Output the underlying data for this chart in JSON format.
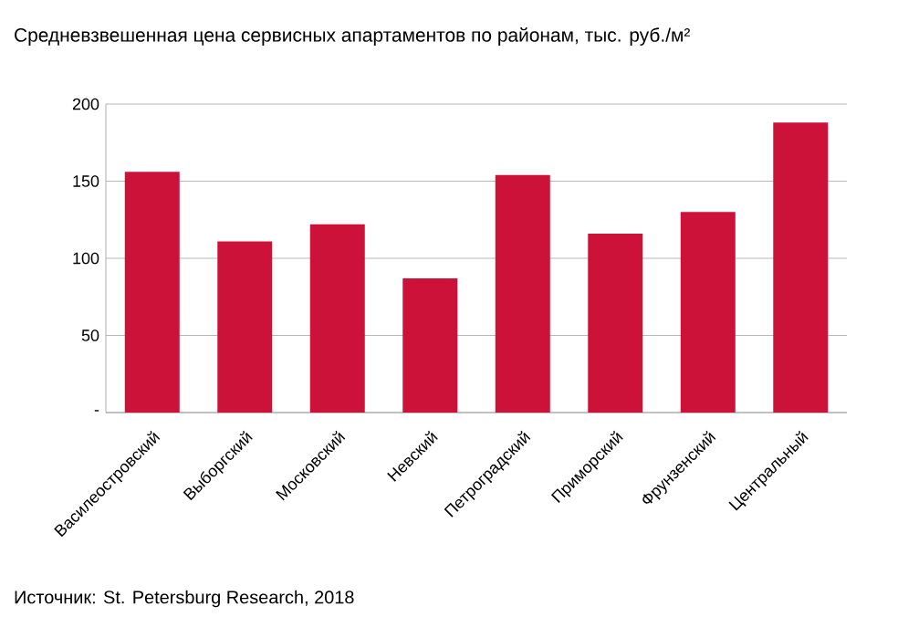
{
  "chart_data": {
    "type": "bar",
    "title": "Средневзвешенная цена сервисных апартаментов по районам, тыс. руб./м²",
    "categories": [
      "Василеостровский",
      "Выборгский",
      "Московский",
      "Невский",
      "Петроградский",
      "Приморский",
      "Фрунзенский",
      "Центральный"
    ],
    "values": [
      156,
      111,
      122,
      87,
      154,
      116,
      130,
      188
    ],
    "color": "#cc1239",
    "ylim": [
      0,
      200
    ],
    "yticks": [
      {
        "value": 0,
        "label": "-"
      },
      50,
      100,
      150,
      200
    ],
    "grid": "y",
    "annotations": [
      "Источник: St. Petersburg Research, 2018"
    ]
  }
}
